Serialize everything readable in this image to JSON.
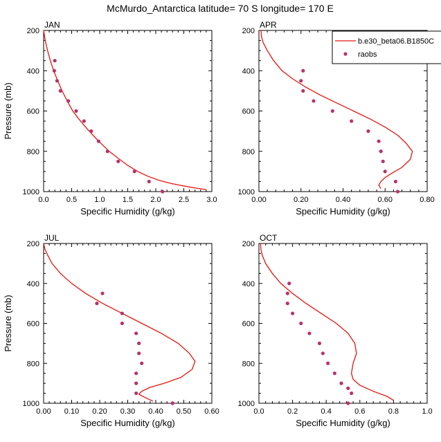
{
  "figure_title": "McMurdo_Antarctica  latitude= 70 S longitude= 170 E",
  "legend": {
    "model_label": "b.e30_beta06.B1850C",
    "obs_label": "raobs",
    "model_color": "#e8140c",
    "obs_color": "#b8336a"
  },
  "chart_data": [
    {
      "type": "line",
      "panel": "JAN",
      "title": "JAN",
      "xlabel": "Specific Humidity (g/kg)",
      "ylabel": "Pressure (mb)",
      "xlim": [
        0,
        3.0
      ],
      "ylim": [
        1000,
        200
      ],
      "y_reversed": true,
      "xticks": [
        0,
        0.5,
        1.0,
        1.5,
        2.0,
        2.5,
        3.0
      ],
      "xtick_labels": [
        "0.0",
        "0.5",
        "1.0",
        "1.5",
        "2.0",
        "2.5",
        "3.0"
      ],
      "yticks": [
        200,
        400,
        600,
        800,
        1000
      ],
      "ytick_labels": [
        "200",
        "400",
        "600",
        "800",
        "1000"
      ],
      "model": {
        "name": "b.e30_beta06.B1850C",
        "x": [
          0.0,
          0.03,
          0.07,
          0.12,
          0.18,
          0.25,
          0.33,
          0.42,
          0.52,
          0.63,
          0.75,
          0.88,
          1.02,
          1.17,
          1.33,
          1.5,
          1.68,
          1.87,
          2.07,
          2.28,
          2.5,
          2.72,
          2.9
        ],
        "y": [
          200,
          250,
          300,
          350,
          400,
          450,
          500,
          550,
          600,
          640,
          680,
          720,
          760,
          800,
          835,
          870,
          900,
          925,
          945,
          960,
          972,
          983,
          990
        ]
      },
      "obs": {
        "name": "raobs",
        "x": [
          0.2,
          0.19,
          0.24,
          0.3,
          0.44,
          0.58,
          0.72,
          0.85,
          0.98,
          1.14,
          1.33,
          1.62,
          1.88,
          2.12
        ],
        "y": [
          350,
          400,
          450,
          500,
          550,
          600,
          650,
          700,
          750,
          800,
          850,
          900,
          950,
          1000
        ]
      }
    },
    {
      "type": "line",
      "panel": "APR",
      "title": "APR",
      "xlabel": "Specific Humidity (g/kg)",
      "ylabel": "",
      "xlim": [
        0,
        0.8
      ],
      "ylim": [
        1000,
        200
      ],
      "y_reversed": true,
      "xticks": [
        0,
        0.2,
        0.4,
        0.6,
        0.8
      ],
      "xtick_labels": [
        "0.00",
        "0.20",
        "0.40",
        "0.60",
        "0.80"
      ],
      "yticks": [
        200,
        400,
        600,
        800,
        1000
      ],
      "ytick_labels": [
        "200",
        "400",
        "600",
        "800",
        "1000"
      ],
      "model": {
        "name": "b.e30_beta06.B1850C",
        "x": [
          0.01,
          0.012,
          0.02,
          0.04,
          0.07,
          0.11,
          0.16,
          0.22,
          0.29,
          0.37,
          0.45,
          0.53,
          0.6,
          0.66,
          0.7,
          0.73,
          0.72,
          0.68,
          0.63,
          0.6,
          0.58,
          0.57,
          0.58
        ],
        "y": [
          200,
          230,
          260,
          300,
          350,
          400,
          440,
          480,
          520,
          560,
          600,
          640,
          680,
          720,
          760,
          800,
          840,
          880,
          910,
          930,
          950,
          968,
          985
        ]
      },
      "obs": {
        "name": "raobs",
        "x": [
          0.21,
          0.2,
          0.21,
          0.26,
          0.35,
          0.44,
          0.52,
          0.57,
          0.58,
          0.59,
          0.6,
          0.65,
          0.66
        ],
        "y": [
          400,
          450,
          500,
          550,
          600,
          650,
          700,
          750,
          800,
          850,
          900,
          950,
          1000
        ]
      }
    },
    {
      "type": "line",
      "panel": "JUL",
      "title": "JUL",
      "xlabel": "Specific Humidity (g/kg)",
      "ylabel": "Pressure (mb)",
      "xlim": [
        0,
        0.6
      ],
      "ylim": [
        1000,
        200
      ],
      "y_reversed": true,
      "xticks": [
        0,
        0.1,
        0.2,
        0.3,
        0.4,
        0.5,
        0.6
      ],
      "xtick_labels": [
        "0.00",
        "0.10",
        "0.20",
        "0.30",
        "0.40",
        "0.50",
        "0.60"
      ],
      "yticks": [
        200,
        400,
        600,
        800,
        1000
      ],
      "ytick_labels": [
        "200",
        "400",
        "600",
        "800",
        "1000"
      ],
      "model": {
        "name": "b.e30_beta06.B1850C",
        "x": [
          0.0,
          0.005,
          0.015,
          0.03,
          0.06,
          0.1,
          0.15,
          0.21,
          0.28,
          0.35,
          0.42,
          0.48,
          0.52,
          0.54,
          0.53,
          0.49,
          0.43,
          0.38,
          0.35,
          0.34,
          0.36,
          0.39
        ],
        "y": [
          200,
          230,
          260,
          300,
          350,
          400,
          450,
          500,
          550,
          600,
          650,
          700,
          750,
          790,
          830,
          870,
          900,
          920,
          940,
          955,
          970,
          990
        ]
      },
      "obs": {
        "name": "raobs",
        "x": [
          0.21,
          0.19,
          0.28,
          0.28,
          0.33,
          0.34,
          0.34,
          0.35,
          0.33,
          0.33,
          0.33,
          0.46
        ],
        "y": [
          450,
          500,
          550,
          600,
          650,
          700,
          750,
          800,
          850,
          900,
          950,
          1000
        ]
      }
    },
    {
      "type": "line",
      "panel": "OCT",
      "title": "OCT",
      "xlabel": "Specific Humidity (g/kg)",
      "ylabel": "",
      "xlim": [
        0,
        1.0
      ],
      "ylim": [
        1000,
        200
      ],
      "y_reversed": true,
      "xticks": [
        0,
        0.2,
        0.4,
        0.6,
        0.8,
        1.0
      ],
      "xtick_labels": [
        "0.0",
        "0.2",
        "0.4",
        "0.6",
        "0.8",
        "1.0"
      ],
      "yticks": [
        200,
        400,
        600,
        800,
        1000
      ],
      "ytick_labels": [
        "200",
        "400",
        "600",
        "800",
        "1000"
      ],
      "model": {
        "name": "b.e30_beta06.B1850C",
        "x": [
          0.01,
          0.012,
          0.02,
          0.04,
          0.08,
          0.13,
          0.2,
          0.28,
          0.37,
          0.46,
          0.53,
          0.57,
          0.58,
          0.56,
          0.55,
          0.56,
          0.6,
          0.68,
          0.76,
          0.8
        ],
        "y": [
          200,
          230,
          260,
          300,
          350,
          400,
          450,
          500,
          550,
          600,
          650,
          700,
          750,
          800,
          850,
          880,
          910,
          940,
          965,
          985
        ]
      },
      "obs": {
        "name": "raobs",
        "x": [
          0.18,
          0.17,
          0.17,
          0.2,
          0.25,
          0.3,
          0.36,
          0.38,
          0.41,
          0.45,
          0.49,
          0.53,
          0.55,
          0.53
        ],
        "y": [
          400,
          450,
          500,
          550,
          600,
          650,
          700,
          750,
          800,
          850,
          900,
          925,
          950,
          1000
        ]
      }
    }
  ]
}
